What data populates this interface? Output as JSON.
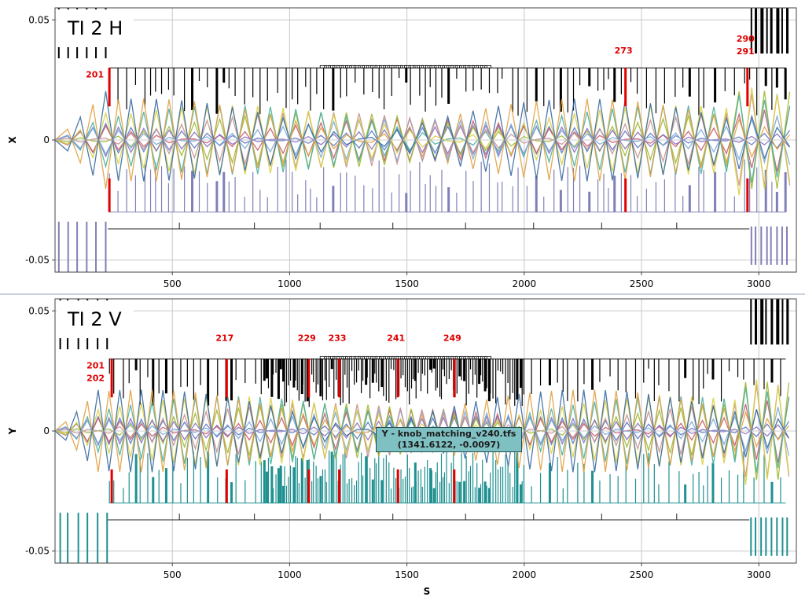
{
  "colors": {
    "background": "#ffffff",
    "frame": "#444444",
    "grid": "#c8c8c8",
    "element_upper": "#000000",
    "element_lower_top": "#8080b8",
    "element_lower_bottom": "#1f9090",
    "highlight": "#e00000",
    "ruler": "#222222",
    "tooltip_bg": "#7fc1c3"
  },
  "orbit_colors": [
    "#5a78c8",
    "#c8596a",
    "#a0b830",
    "#4ab0a0",
    "#e0a040",
    "#8a6ec0",
    "#7aa8d8",
    "#c89090",
    "#d8d040",
    "#3a6aa0"
  ],
  "chart_data": [
    {
      "type": "line",
      "title": "TI 2 H",
      "xlabel": "",
      "ylabel": "X",
      "xlim": [
        0,
        3160
      ],
      "ylim": [
        -0.055,
        0.055
      ],
      "xticks": [
        500,
        1000,
        1500,
        2000,
        2500,
        3000
      ],
      "yticks": [
        "0.05",
        "0",
        "-0.05"
      ],
      "ytick_values": [
        0.05,
        0,
        -0.05
      ],
      "highlighted_elements": [
        {
          "label": "201",
          "s": 230
        },
        {
          "label": "273",
          "s": 2430
        },
        {
          "label": "290\n291",
          "s": 2950
        }
      ],
      "element_color": "#8080b8",
      "grid": true,
      "legend": "none"
    },
    {
      "type": "line",
      "title": "TI 2 V",
      "xlabel": "S",
      "ylabel": "Y",
      "xlim": [
        0,
        3160
      ],
      "ylim": [
        -0.055,
        0.055
      ],
      "xticks": [
        500,
        1000,
        1500,
        2000,
        2500,
        3000
      ],
      "yticks": [
        "0.05",
        "0",
        "-0.05"
      ],
      "ytick_values": [
        0.05,
        0,
        -0.05
      ],
      "highlighted_elements": [
        {
          "label": "201\n202",
          "s": 240
        },
        {
          "label": "217",
          "s": 730
        },
        {
          "label": "229",
          "s": 1080
        },
        {
          "label": "233",
          "s": 1210
        },
        {
          "label": "241",
          "s": 1460
        },
        {
          "label": "249",
          "s": 1700
        }
      ],
      "element_color": "#1f9090",
      "grid": true,
      "legend": "none"
    }
  ],
  "tooltip": {
    "line1": "Y - knob_matching_v240.tfs",
    "line2": "(1341.6122, -0.0097)"
  }
}
